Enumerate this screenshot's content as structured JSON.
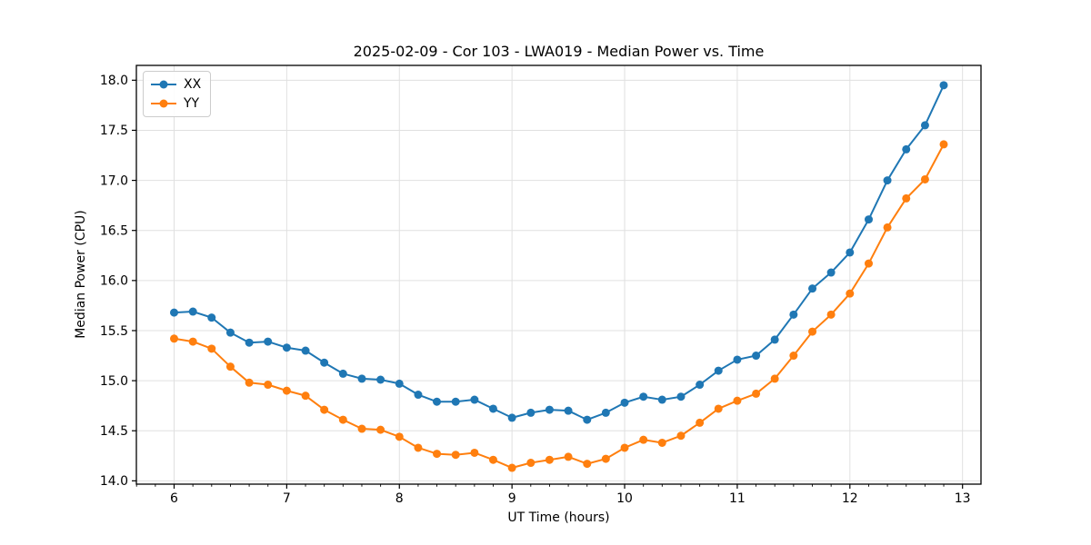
{
  "chart_data": {
    "type": "line",
    "title": "2025-02-09 - Cor 103 - LWA019 - Median Power vs. Time",
    "xlabel": "UT Time (hours)",
    "ylabel": "Median Power (CPU)",
    "x": [
      6.0,
      6.167,
      6.333,
      6.5,
      6.667,
      6.833,
      7.0,
      7.167,
      7.333,
      7.5,
      7.667,
      7.833,
      8.0,
      8.167,
      8.333,
      8.5,
      8.667,
      8.833,
      9.0,
      9.167,
      9.333,
      9.5,
      9.667,
      9.833,
      10.0,
      10.167,
      10.333,
      10.5,
      10.667,
      10.833,
      11.0,
      11.167,
      11.333,
      11.5,
      11.667,
      11.833,
      12.0,
      12.167,
      12.333,
      12.5,
      12.667,
      12.833
    ],
    "series": [
      {
        "name": "XX",
        "color": "#1f77b4",
        "marker": "circle",
        "values": [
          15.68,
          15.69,
          15.63,
          15.48,
          15.38,
          15.39,
          15.33,
          15.3,
          15.18,
          15.07,
          15.02,
          15.01,
          14.97,
          14.86,
          14.79,
          14.79,
          14.81,
          14.72,
          14.63,
          14.68,
          14.71,
          14.7,
          14.61,
          14.68,
          14.78,
          14.84,
          14.81,
          14.84,
          14.96,
          15.1,
          15.21,
          15.25,
          15.41,
          15.66,
          15.92,
          16.08,
          16.28,
          16.61,
          17.0,
          17.31,
          17.55,
          17.95
        ]
      },
      {
        "name": "YY",
        "color": "#ff7f0e",
        "marker": "circle",
        "values": [
          15.42,
          15.39,
          15.32,
          15.14,
          14.98,
          14.96,
          14.9,
          14.85,
          14.71,
          14.61,
          14.52,
          14.51,
          14.44,
          14.33,
          14.27,
          14.26,
          14.28,
          14.21,
          14.13,
          14.18,
          14.21,
          14.24,
          14.17,
          14.22,
          14.33,
          14.41,
          14.38,
          14.45,
          14.58,
          14.72,
          14.8,
          14.87,
          15.02,
          15.25,
          15.49,
          15.66,
          15.87,
          16.17,
          16.53,
          16.82,
          17.01,
          17.36
        ]
      }
    ],
    "xlim": [
      5.665,
      13.164
    ],
    "ylim": [
      13.967,
      18.148
    ],
    "xticks": [
      6,
      7,
      8,
      9,
      10,
      11,
      12,
      13
    ],
    "yticks": [
      14.0,
      14.5,
      15.0,
      15.5,
      16.0,
      16.5,
      17.0,
      17.5,
      18.0
    ],
    "x_minor_tick_step": 0.1667,
    "grid": true,
    "grid_color": "#e0e0e0",
    "legend_position": "upper-left"
  }
}
